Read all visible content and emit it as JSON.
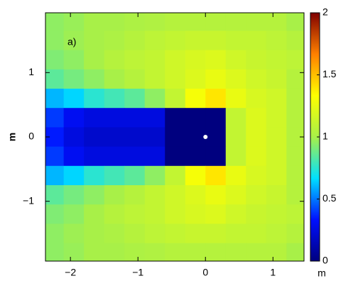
{
  "chart_data": {
    "type": "heatmap",
    "annotation": "a)",
    "y_label": "m",
    "x_label": "m",
    "xlim": [
      -2.37,
      1.46
    ],
    "ylim": [
      -1.93,
      1.93
    ],
    "xticks": [
      {
        "value": -2,
        "label": "−2"
      },
      {
        "value": -1,
        "label": "−1"
      },
      0,
      1
    ],
    "yticks": [
      1,
      0,
      {
        "value": -1,
        "label": "−1"
      }
    ],
    "zlim": [
      0,
      2
    ],
    "zticks": [
      0,
      0.5,
      1,
      1.5,
      2
    ],
    "colormap": [
      "#00007f",
      "#0010ff",
      "#00e0ff",
      "#a8f048",
      "#ffff00",
      "#ff8000",
      "#800000"
    ],
    "x": [
      -2.25,
      -1.95,
      -1.65,
      -1.35,
      -1.05,
      -0.75,
      -0.45,
      -0.15,
      0.15,
      0.45,
      0.75,
      1.05,
      1.35
    ],
    "y": [
      1.8,
      1.5,
      1.2,
      0.9,
      0.6,
      0.3,
      0,
      -0.3,
      -0.6,
      -0.9,
      -1.2,
      -1.5,
      -1.8
    ],
    "z": [
      [
        0.95,
        0.97,
        1.0,
        1.0,
        1.02,
        1.03,
        1.05,
        1.05,
        1.05,
        1.05,
        1.05,
        1.05,
        1.0
      ],
      [
        0.95,
        0.98,
        1.0,
        1.02,
        1.05,
        1.08,
        1.1,
        1.12,
        1.12,
        1.1,
        1.1,
        1.08,
        1.05
      ],
      [
        0.92,
        0.95,
        1.0,
        1.05,
        1.08,
        1.1,
        1.15,
        1.18,
        1.2,
        1.15,
        1.12,
        1.1,
        1.08
      ],
      [
        0.85,
        0.9,
        0.95,
        1.0,
        1.05,
        1.1,
        1.15,
        1.2,
        1.25,
        1.2,
        1.15,
        1.12,
        1.05
      ],
      [
        0.6,
        0.65,
        0.75,
        0.8,
        0.85,
        0.95,
        1.1,
        1.3,
        1.4,
        1.25,
        1.18,
        1.15,
        1.05
      ],
      [
        0.4,
        0.3,
        0.25,
        0.25,
        0.25,
        0.25,
        0,
        0,
        0,
        1.1,
        1.2,
        1.15,
        1.05
      ],
      [
        0.35,
        0.25,
        0.2,
        0.2,
        0.2,
        0.2,
        0,
        0,
        0,
        1.1,
        1.2,
        1.15,
        1.05
      ],
      [
        0.4,
        0.3,
        0.25,
        0.25,
        0.25,
        0.25,
        0,
        0,
        0,
        1.1,
        1.2,
        1.15,
        1.05
      ],
      [
        0.6,
        0.65,
        0.75,
        0.8,
        0.85,
        0.95,
        1.1,
        1.3,
        1.4,
        1.25,
        1.18,
        1.15,
        1.05
      ],
      [
        0.85,
        0.9,
        0.95,
        1.0,
        1.05,
        1.1,
        1.15,
        1.2,
        1.25,
        1.2,
        1.15,
        1.12,
        1.05
      ],
      [
        0.92,
        0.95,
        1.0,
        1.05,
        1.08,
        1.1,
        1.15,
        1.18,
        1.2,
        1.15,
        1.12,
        1.1,
        1.08
      ],
      [
        0.95,
        0.98,
        1.0,
        1.02,
        1.05,
        1.08,
        1.1,
        1.12,
        1.12,
        1.1,
        1.1,
        1.08,
        1.05
      ],
      [
        0.95,
        0.97,
        1.0,
        1.0,
        1.02,
        1.03,
        1.05,
        1.05,
        1.05,
        1.05,
        1.05,
        1.05,
        1.0
      ]
    ],
    "marker": {
      "x": 0,
      "y": 0,
      "color": "#ffffff"
    }
  }
}
